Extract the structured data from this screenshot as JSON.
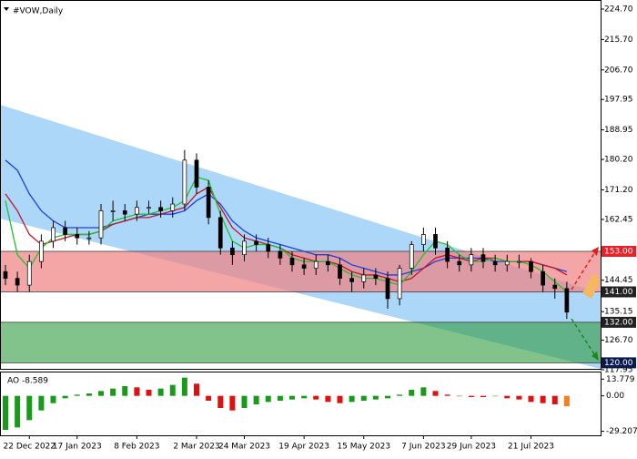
{
  "chart_data": {
    "type": "candlestick",
    "title": "#VOW,Daily",
    "categories": [
      null,
      null,
      "22 Dec 2022",
      null,
      null,
      null,
      "17 Jan 2023",
      null,
      null,
      null,
      null,
      "8 Feb 2023",
      null,
      null,
      null,
      null,
      "2 Mar 2023",
      null,
      null,
      null,
      "24 Mar 2023",
      null,
      null,
      null,
      null,
      "19 Apr 2023",
      null,
      null,
      null,
      null,
      "15 May 2023",
      null,
      null,
      null,
      null,
      "7 Jun 2023",
      null,
      null,
      null,
      "29 Jun 2023",
      null,
      null,
      null,
      null,
      "21 Jul 2023",
      null,
      null,
      null
    ],
    "open": [
      147,
      145,
      143,
      150,
      156,
      160,
      158,
      157,
      157,
      165,
      165,
      164,
      166,
      166,
      165,
      167,
      180,
      172,
      163,
      154,
      152,
      156,
      155,
      153,
      151,
      149,
      148,
      150,
      149,
      145,
      144,
      146,
      145,
      139,
      148,
      155,
      158,
      154,
      150,
      149,
      152,
      150,
      149,
      150,
      150,
      147,
      143,
      142
    ],
    "high": [
      149,
      147,
      152,
      158,
      162,
      162,
      160,
      159,
      167,
      168,
      167,
      168,
      168,
      168,
      169,
      183,
      182,
      174,
      165,
      156,
      158,
      158,
      157,
      155,
      153,
      151,
      152,
      152,
      151,
      147,
      148,
      148,
      147,
      149,
      156,
      160,
      160,
      156,
      152,
      154,
      154,
      152,
      152,
      152,
      151,
      149,
      145,
      144
    ],
    "low": [
      143,
      141,
      141,
      148,
      154,
      156,
      155,
      155,
      155,
      162,
      162,
      162,
      164,
      163,
      163,
      165,
      170,
      161,
      152,
      149,
      150,
      153,
      151,
      149,
      147,
      146,
      146,
      147,
      143,
      141,
      142,
      143,
      136,
      137,
      146,
      153,
      152,
      148,
      147,
      147,
      148,
      147,
      147,
      148,
      145,
      141,
      139,
      133
    ],
    "close": [
      145,
      143,
      150,
      156,
      160,
      158,
      157,
      157,
      165,
      165,
      164,
      166,
      166,
      165,
      167,
      180,
      172,
      163,
      154,
      152,
      156,
      155,
      153,
      151,
      149,
      148,
      150,
      149,
      145,
      144,
      146,
      145,
      139,
      148,
      155,
      158,
      154,
      150,
      149,
      152,
      150,
      149,
      150,
      150,
      147,
      143,
      142,
      135
    ],
    "series": [
      {
        "color": "#1f3fe0",
        "values": [
          180,
          177,
          170,
          165,
          162,
          160,
          160,
          160,
          160,
          161,
          162,
          163,
          164,
          164,
          164,
          165,
          168,
          170,
          167,
          162,
          159,
          157,
          156,
          155,
          154,
          153,
          152,
          152,
          151,
          149,
          148,
          147,
          146,
          146,
          147,
          148,
          150,
          151,
          151,
          151,
          151,
          150,
          150,
          150,
          150,
          149,
          148,
          147
        ]
      },
      {
        "color": "#c0182a",
        "values": [
          170,
          165,
          158,
          155,
          156,
          157,
          158,
          158,
          159,
          161,
          162,
          163,
          163,
          164,
          165,
          166,
          170,
          172,
          166,
          160,
          157,
          156,
          155,
          154,
          152,
          151,
          150,
          150,
          149,
          147,
          146,
          146,
          145,
          144,
          145,
          148,
          151,
          152,
          151,
          150,
          151,
          151,
          150,
          150,
          150,
          149,
          148,
          146
        ]
      },
      {
        "color": "#22c02a",
        "values": [
          168,
          152,
          148,
          154,
          157,
          158,
          158,
          158,
          159,
          162,
          163,
          164,
          164,
          165,
          166,
          168,
          175,
          174,
          164,
          156,
          154,
          155,
          155,
          154,
          151,
          150,
          150,
          150,
          148,
          146,
          145,
          145,
          144,
          143,
          147,
          152,
          156,
          155,
          152,
          150,
          150,
          151,
          150,
          150,
          149,
          147,
          144,
          141
        ]
      }
    ],
    "ylim": [
      117.95,
      224.7
    ],
    "yticks": [
      {
        "value": 224.7,
        "label": "224.70"
      },
      {
        "value": 215.7,
        "label": "215.70"
      },
      {
        "value": 206.7,
        "label": "206.70"
      },
      197.95,
      188.95,
      {
        "value": 180.2,
        "label": "180.20"
      },
      {
        "value": 171.2,
        "label": "171.20"
      },
      162.45,
      144.45,
      135.15,
      {
        "value": 126.7,
        "label": "126.70"
      },
      117.95
    ],
    "levels": [
      {
        "value": 153,
        "label": "153.00",
        "color": "#e8202a"
      },
      {
        "value": 141,
        "label": "141.00",
        "color": "#222222"
      },
      {
        "value": 132,
        "label": "132.00",
        "color": "#222222"
      },
      {
        "value": 120,
        "label": "120.00",
        "color": "#0a1a50"
      }
    ],
    "indicator": {
      "title": "AO -8.589",
      "ylim": [
        -31,
        17
      ],
      "yticks": [
        {
          "value": 13.779,
          "label": "13.779"
        },
        {
          "value": 0,
          "label": "0.00"
        },
        -29.207
      ],
      "up_color": "#1a9a1a",
      "down_color": "#e01010",
      "values": [
        -28,
        -26,
        -20,
        -12,
        -6,
        -2,
        1,
        2,
        4,
        6,
        8,
        7,
        5,
        6,
        9,
        15,
        10,
        -4,
        -10,
        -12,
        -10,
        -7,
        -5,
        -4,
        -3,
        -2,
        -3,
        -5,
        -6,
        -5,
        -4,
        -3,
        -2,
        1,
        5,
        7,
        4,
        1,
        0,
        -1,
        -1,
        0,
        -2,
        -3,
        -5,
        -6,
        -7,
        -8.589
      ]
    }
  }
}
